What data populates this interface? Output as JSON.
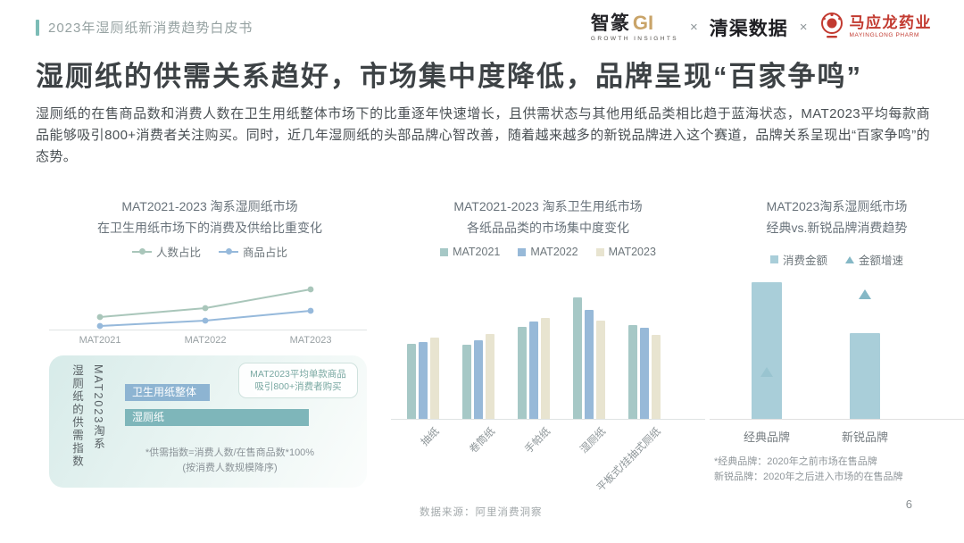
{
  "page": {
    "page_number": "6",
    "background": "#ffffff"
  },
  "header": {
    "doc_title": "2023年湿厕纸新消费趋势白皮书",
    "accent_color": "#7cbcb6"
  },
  "logos": {
    "zhizhuan_name": "智篆",
    "zhizhuan_gi": "GI",
    "zhizhuan_subtitle": "GROWTH INSIGHTS",
    "separator1": "×",
    "qingqu_name": "清渠数据",
    "separator2": "×",
    "mayinglong_name": "马应龙药业",
    "mayinglong_subtitle": "MAYINGLONG PHARM",
    "mayinglong_color": "#c23a30"
  },
  "main_title": "湿厕纸的供需关系趋好，市场集中度降低，品牌呈现“百家争鸣”",
  "paragraph": "湿厕纸的在售商品数和消费人数在卫生用纸整体市场下的比重逐年快速增长，且供需状态与其他用纸品类相比趋于蓝海状态，MAT2023平均每款商品能够吸引800+消费者关注购买。同时，近几年湿厕纸的头部品牌心智改善，随着越来越多的新锐品牌进入这个赛道，品牌关系呈现出“百家争鸣”的态势。",
  "footer": {
    "source": "数据来源：阿里消费洞察"
  },
  "chart_data": [
    {
      "id": "wet-wipe-share-trend",
      "type": "line",
      "title": [
        "MAT2021-2023 淘系湿厕纸市场",
        "在卫生用纸市场下的消费及供给比重变化"
      ],
      "x": [
        "MAT2021",
        "MAT2022",
        "MAT2023"
      ],
      "series": [
        {
          "name": "人数占比",
          "marker": "line-dot",
          "color": "#a9c6ba",
          "values": [
            14,
            24,
            45
          ]
        },
        {
          "name": "商品占比",
          "marker": "line-dot",
          "color": "#96b9db",
          "values": [
            4,
            10,
            21
          ]
        }
      ],
      "y_axis_labeled": false,
      "legend_position": "top",
      "supply_demand_box": {
        "vertical_label": [
          "MAT2023淘系",
          "湿厕纸的供需指数"
        ],
        "bars": [
          {
            "label": "卫生用纸整体",
            "color": "#8db4d2",
            "value": 46
          },
          {
            "label": "湿厕纸",
            "color": "#7eb6ba",
            "value": 100
          }
        ],
        "callout": [
          "MAT2023平均单款商品",
          "吸引800+消费者购买"
        ],
        "footnote": [
          "*供需指数=消费人数/在售商品数*100%",
          "(按消费人数规模降序)"
        ]
      }
    },
    {
      "id": "market-concentration",
      "type": "bar",
      "title": [
        "MAT2021-2023 淘系卫生用纸市场",
        "各纸品品类的市场集中度变化"
      ],
      "categories": [
        "抽纸",
        "卷筒纸",
        "手帕纸",
        "湿厕纸",
        "平板式/挂抽式厕纸"
      ],
      "series": [
        {
          "name": "MAT2021",
          "marker": "square",
          "color": "#a6c8c6",
          "values": [
            62,
            61,
            76,
            100,
            77
          ]
        },
        {
          "name": "MAT2022",
          "marker": "square",
          "color": "#97b9d8",
          "values": [
            63,
            65,
            80,
            90,
            75
          ]
        },
        {
          "name": "MAT2023",
          "marker": "square",
          "color": "#e8e4d0",
          "values": [
            67,
            70,
            83,
            81,
            69
          ]
        }
      ],
      "y_axis_labeled": false,
      "legend_position": "top"
    },
    {
      "id": "classic-vs-new-brands",
      "type": "bar",
      "title": [
        "MAT2023淘系湿厕纸市场",
        "经典vs.新锐品牌消费趋势"
      ],
      "categories": [
        "经典品牌",
        "新锐品牌"
      ],
      "series": [
        {
          "name": "消费金额",
          "marker": "square",
          "color": "#a9ced9",
          "values": [
            100,
            63
          ]
        },
        {
          "name": "金额增速",
          "marker": "triangle",
          "color": "#85b8c6",
          "values": [
            31,
            82
          ]
        }
      ],
      "footnote": [
        "*经典品牌：2020年之前市场在售品牌",
        "新锐品牌：2020年之后进入市场的在售品牌"
      ],
      "y_axis_labeled": false,
      "legend_position": "top"
    }
  ]
}
